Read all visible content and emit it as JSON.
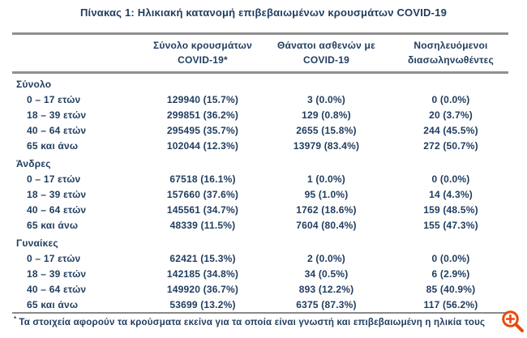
{
  "title": "Πίνακας 1: Ηλικιακή κατανομή επιβεβαιωμένων κρουσμάτων COVID-19",
  "table": {
    "column_headers": [
      {
        "line1": "Σύνολο κρουσμάτων",
        "line2": "COVID-19*"
      },
      {
        "line1": "Θάνατοι ασθενών με",
        "line2": "COVID-19"
      },
      {
        "line1": "Νοσηλευόμενοι",
        "line2": "διασωληνωθέντες"
      }
    ],
    "sections": [
      {
        "name": "Σύνολο",
        "rows": [
          {
            "age_group": "0 – 17 ετών",
            "cases": "129940 (15.7%)",
            "deaths": "3 (0.0%)",
            "intubated": "0 (0.0%)"
          },
          {
            "age_group": "18 – 39 ετών",
            "cases": "299851 (36.2%)",
            "deaths": "129 (0.8%)",
            "intubated": "20 (3.7%)"
          },
          {
            "age_group": "40 – 64 ετών",
            "cases": "295495 (35.7%)",
            "deaths": "2655 (15.8%)",
            "intubated": "244 (45.5%)"
          },
          {
            "age_group": "65 και άνω",
            "cases": "102044 (12.3%)",
            "deaths": "13979 (83.4%)",
            "intubated": "272 (50.7%)"
          }
        ]
      },
      {
        "name": "Άνδρες",
        "rows": [
          {
            "age_group": "0 – 17 ετών",
            "cases": "67518 (16.1%)",
            "deaths": "1 (0.0%)",
            "intubated": "0 (0.0%)"
          },
          {
            "age_group": "18 – 39 ετών",
            "cases": "157660 (37.6%)",
            "deaths": "95 (1.0%)",
            "intubated": "14 (4.3%)"
          },
          {
            "age_group": "40 – 64 ετών",
            "cases": "145561 (34.7%)",
            "deaths": "1762 (18.6%)",
            "intubated": "159 (48.5%)"
          },
          {
            "age_group": "65 και άνω",
            "cases": "48339 (11.5%)",
            "deaths": "7604 (80.4%)",
            "intubated": "155 (47.3%)"
          }
        ]
      },
      {
        "name": "Γυναίκες",
        "rows": [
          {
            "age_group": "0 – 17 ετών",
            "cases": "62421 (15.3%)",
            "deaths": "2 (0.0%)",
            "intubated": "0 (0.0%)"
          },
          {
            "age_group": "18 – 39 ετών",
            "cases": "142185 (34.8%)",
            "deaths": "34 (0.5%)",
            "intubated": "6 (2.9%)"
          },
          {
            "age_group": "40 – 64 ετών",
            "cases": "149920 (36.7%)",
            "deaths": "893 (12.2%)",
            "intubated": "85 (40.9%)"
          },
          {
            "age_group": "65 και άνω",
            "cases": "53699 (13.2%)",
            "deaths": "6375 (87.3%)",
            "intubated": "117 (56.2%)"
          }
        ]
      }
    ]
  },
  "footnote": {
    "marker": "*",
    "text": "Τα στοιχεία αφορούν τα κρούσματα εκείνα για τα οποία είναι γνωστή και επιβεβαιωμένη η ηλικία τους"
  },
  "icons": {
    "zoom_icon": "magnifier-plus-icon"
  },
  "colors": {
    "text": "#1f3c5e",
    "border": "#8f8f8f",
    "zoom_icon": "#e8490f"
  }
}
